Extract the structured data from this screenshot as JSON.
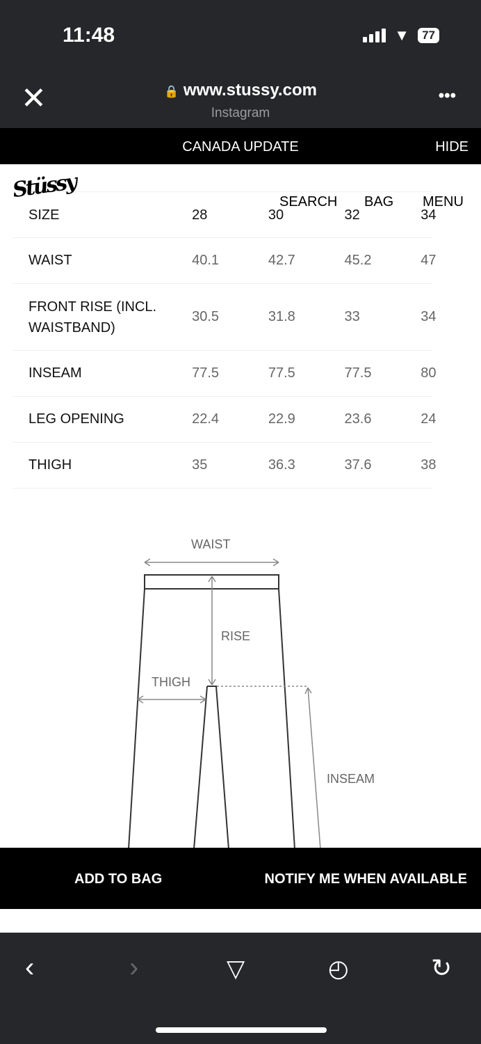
{
  "status": {
    "time": "11:48",
    "battery": "77"
  },
  "browser": {
    "url": "www.stussy.com",
    "source": "Instagram"
  },
  "banner": {
    "text": "CANADA UPDATE",
    "hide": "HIDE"
  },
  "site": {
    "logo": "Stüssy",
    "nav": [
      "SEARCH",
      "BAG",
      "MENU"
    ]
  },
  "table": {
    "header": {
      "label": "SIZE",
      "sizes": [
        "28",
        "30",
        "32",
        "34"
      ]
    },
    "rows": [
      {
        "label": "WAIST",
        "values": [
          "40.1",
          "42.7",
          "45.2",
          "47"
        ]
      },
      {
        "label": "FRONT RISE (INCL. WAISTBAND)",
        "values": [
          "30.5",
          "31.8",
          "33",
          "34"
        ]
      },
      {
        "label": "INSEAM",
        "values": [
          "77.5",
          "77.5",
          "77.5",
          "80"
        ]
      },
      {
        "label": "LEG OPENING",
        "values": [
          "22.4",
          "22.9",
          "23.6",
          "24"
        ]
      },
      {
        "label": "THIGH",
        "values": [
          "35",
          "36.3",
          "37.6",
          "38"
        ]
      }
    ]
  },
  "diagram": {
    "waist": "WAIST",
    "rise": "RISE",
    "thigh": "THIGH",
    "inseam": "INSEAM"
  },
  "actions": {
    "add": "ADD TO BAG",
    "notify": "NOTIFY ME WHEN AVAILABLE"
  }
}
